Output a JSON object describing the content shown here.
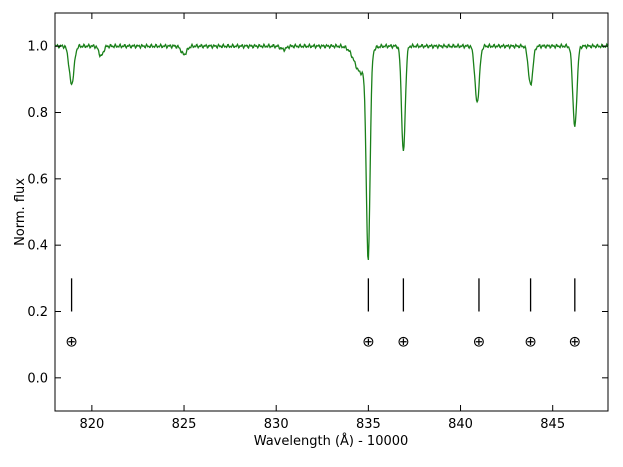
{
  "chart_data": {
    "type": "line",
    "title": "",
    "xlabel": "Wavelength (Å) - 10000",
    "ylabel": "Norm. flux",
    "xlim": [
      818,
      848
    ],
    "ylim": [
      -0.1,
      1.1
    ],
    "xticks": [
      820,
      825,
      830,
      835,
      840,
      845
    ],
    "yticks": [
      0.0,
      0.2,
      0.4,
      0.6,
      0.8,
      1.0
    ],
    "xtick_labels": [
      "820",
      "825",
      "830",
      "835",
      "840",
      "845"
    ],
    "ytick_labels": [
      "0.0",
      "0.2",
      "0.4",
      "0.6",
      "0.8",
      "1.0"
    ],
    "grid": false,
    "series": [
      {
        "color": "#1a801a",
        "continuum": 1.0,
        "absorption_lines": [
          {
            "center": 818.9,
            "depth": 0.115,
            "width": 0.13
          },
          {
            "center": 820.5,
            "depth": 0.03,
            "width": 0.12
          },
          {
            "center": 825.0,
            "depth": 0.025,
            "width": 0.15
          },
          {
            "center": 830.4,
            "depth": 0.01,
            "width": 0.15
          },
          {
            "center": 834.99,
            "depth": 0.605,
            "width": 0.1
          },
          {
            "center": 834.6,
            "depth": 0.08,
            "width": 0.35
          },
          {
            "center": 836.9,
            "depth": 0.32,
            "width": 0.1
          },
          {
            "center": 840.9,
            "depth": 0.17,
            "width": 0.12
          },
          {
            "center": 843.8,
            "depth": 0.118,
            "width": 0.12
          },
          {
            "center": 846.2,
            "depth": 0.244,
            "width": 0.11
          }
        ]
      }
    ],
    "markers": {
      "line_x": [
        818.9,
        835.0,
        836.9,
        841.0,
        843.8,
        846.2
      ],
      "bar_y": [
        0.2,
        0.3
      ],
      "symbol": "⊕",
      "symbol_y": 0.11
    }
  }
}
